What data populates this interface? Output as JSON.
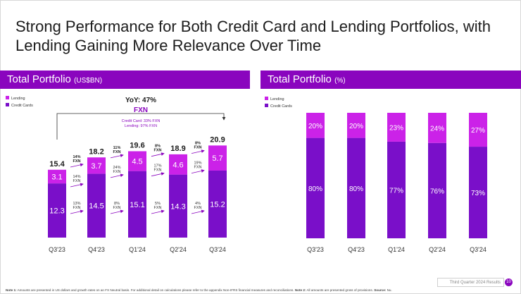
{
  "slide": {
    "title_line1": "Strong Performance for Both Credit Card and Lending Portfolios, with",
    "title_line2": "Lending Gaining More Relevance Over Time",
    "footer_label": "Third Quarter 2024 Results",
    "page_number": "10",
    "note1_label": "Note 1:",
    "note1_text": " Amounts are presented in US dollars and growth rates on an FX Neutral basis. For additional detail on calculations please refer to the appendix Non-IFRS financial measures and reconciliations. ",
    "note2_label": "Note 2:",
    "note2_text": " All amounts are presented gross of provisions. ",
    "source_label": "Source:",
    "source_text": " Nu."
  },
  "colors": {
    "lending": "#cb22e8",
    "credit_cards": "#7a0fc9",
    "header": "#8a05be",
    "growth": "#8a05be",
    "text_dark": "#1c1c1c"
  },
  "chart_data": [
    {
      "type": "bar",
      "stacked": true,
      "title": "Total Portfolio",
      "title_unit": "(US$BN)",
      "categories": [
        "Q3'23",
        "Q4'23",
        "Q1'24",
        "Q2'24",
        "Q3'24"
      ],
      "series": [
        {
          "name": "Lending",
          "values": [
            3.1,
            3.7,
            4.5,
            4.6,
            5.7
          ]
        },
        {
          "name": "Credit Cards",
          "values": [
            12.3,
            14.5,
            15.1,
            14.3,
            15.2
          ]
        }
      ],
      "totals": [
        "15.4",
        "18.2",
        "19.6",
        "18.9",
        "20.9"
      ],
      "legend": [
        "Lending",
        "Credit Cards"
      ],
      "ylim": [
        0,
        22
      ],
      "yoy_title": "YoY: 47%",
      "yoy_sub": "FXN",
      "yoy_detail1": "Credit Card: 33% FXN",
      "yoy_detail2": "Lending: 97% FXN",
      "growth": [
        {
          "total": "14%",
          "lending": "14%",
          "cards": "13%"
        },
        {
          "total": "11%",
          "lending": "24%",
          "cards": "8%"
        },
        {
          "total": "8%",
          "lending": "17%",
          "cards": "5%"
        },
        {
          "total": "8%",
          "lending": "19%",
          "cards": "4%"
        }
      ],
      "fxn": "FXN"
    },
    {
      "type": "bar",
      "stacked": true,
      "title": "Total Portfolio",
      "title_unit": "(%)",
      "categories": [
        "Q3'23",
        "Q4'23",
        "Q1'24",
        "Q2'24",
        "Q3'24"
      ],
      "series": [
        {
          "name": "Lending",
          "values": [
            20,
            20,
            23,
            24,
            27
          ]
        },
        {
          "name": "Credit Cards",
          "values": [
            80,
            80,
            77,
            76,
            73
          ]
        }
      ],
      "labels": {
        "Lending": [
          "20%",
          "20%",
          "23%",
          "24%",
          "27%"
        ],
        "Credit Cards": [
          "80%",
          "80%",
          "77%",
          "76%",
          "73%"
        ]
      },
      "legend": [
        "Lending",
        "Credit Cards"
      ],
      "ylim": [
        0,
        100
      ]
    }
  ]
}
